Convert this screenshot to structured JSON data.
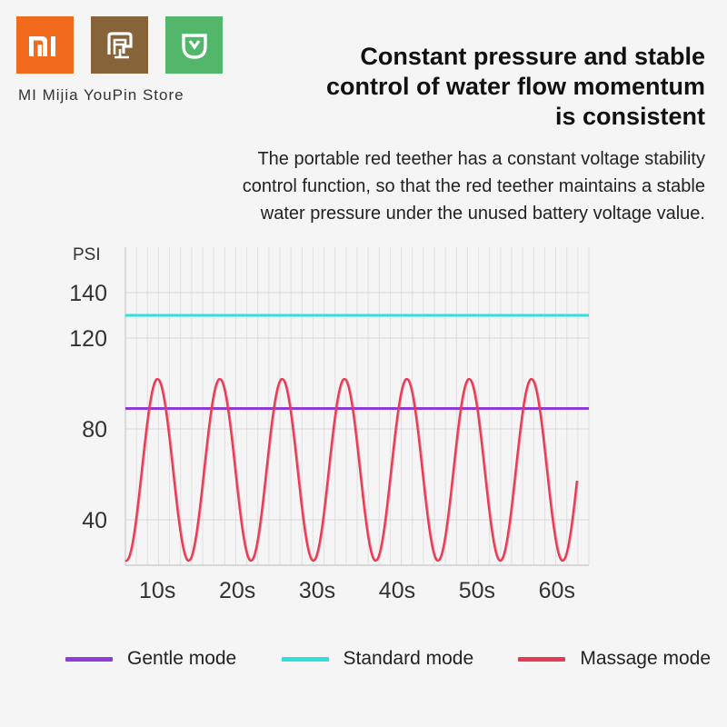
{
  "brand": {
    "store_name": "MI Mijia YouPin Store",
    "logos": [
      {
        "name": "mi-logo",
        "text": "MI",
        "color": "#f26b1d"
      },
      {
        "name": "youpin-logo",
        "icon": "youpin-icon",
        "color": "#87633a"
      },
      {
        "name": "mijia-logo",
        "icon": "mijia-icon",
        "color": "#52b66b"
      }
    ]
  },
  "headline": {
    "line1": "Constant pressure and stable",
    "line2": "control of water flow momentum",
    "line3": "is consistent"
  },
  "description": {
    "line1": "The portable red teether has a constant voltage stability",
    "line2": "control function, so that the red teether maintains a stable",
    "line3": "water pressure under the unused battery voltage value."
  },
  "chart_data": {
    "type": "line",
    "ylabel": "PSI",
    "ylim": [
      20,
      160
    ],
    "yticks": [
      40,
      80,
      120,
      140
    ],
    "yticks_labels": [
      "40",
      "80",
      "120",
      "140"
    ],
    "xlim": [
      6,
      64
    ],
    "xticks": [
      10,
      20,
      30,
      40,
      50,
      60
    ],
    "xtick_labels": [
      "10s",
      "20s",
      "30s",
      "40s",
      "50s",
      "60s"
    ],
    "grid": "vertical-and-horizontal",
    "series": [
      {
        "name": "Gentle mode",
        "color": "#8f3cd6",
        "type": "constant",
        "value": 89
      },
      {
        "name": "Standard mode",
        "color": "#2fe0dc",
        "type": "constant",
        "value": 130
      },
      {
        "name": "Massage mode",
        "color": "#e63a55",
        "type": "oscillating",
        "min": 22,
        "max": 102,
        "period": 7.8,
        "peaks_at": [
          10,
          17.8,
          25.6,
          33.4,
          41.2,
          49.0,
          56.8
        ]
      }
    ],
    "legend_position": "bottom"
  },
  "legend": [
    {
      "label": "Gentle mode",
      "color": "#8f3cd6"
    },
    {
      "label": "Standard mode",
      "color": "#2fe0dc"
    },
    {
      "label": "Massage mode",
      "color": "#e63a55"
    }
  ]
}
